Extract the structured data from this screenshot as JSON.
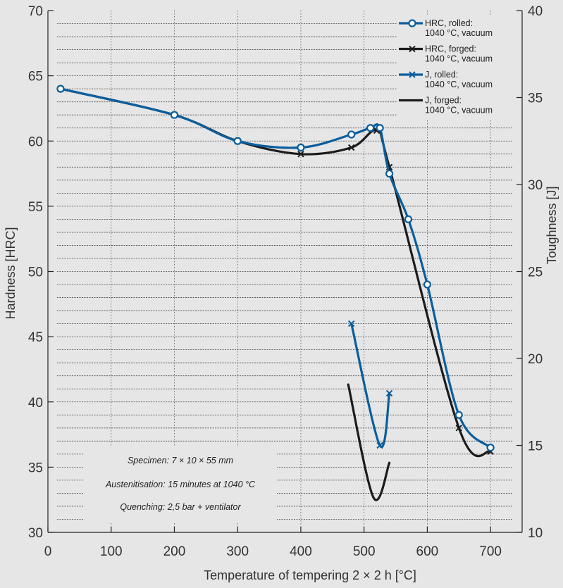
{
  "chart_data": {
    "type": "line",
    "xlabel": "Temperature of tempering 2 × 2 h [°C]",
    "ylabel": "Hardness [HRC]",
    "y2label": "Toughness [J]",
    "xlim": [
      0,
      750
    ],
    "ylim": [
      30,
      70
    ],
    "y2lim": [
      10,
      40
    ],
    "x_ticks": [
      "0",
      "100",
      "200",
      "300",
      "400",
      "500",
      "600",
      "700"
    ],
    "y_ticks": [
      "30",
      "35",
      "40",
      "45",
      "50",
      "55",
      "60",
      "65",
      "70"
    ],
    "y2_ticks": [
      "10",
      "15",
      "20",
      "25",
      "30",
      "35",
      "40"
    ],
    "series": [
      {
        "name": "HRC, rolled: 1040 °C, vacuum",
        "legend_lines": [
          "HRC, rolled:",
          "1040 °C, vacuum"
        ],
        "axis": "left",
        "color": "#0a5e9e",
        "marker": "circle",
        "x": [
          20,
          200,
          300,
          400,
          480,
          510,
          525,
          540,
          570,
          600,
          650,
          700
        ],
        "y": [
          64,
          62,
          60,
          59.5,
          60.5,
          61,
          61,
          57.5,
          54,
          49,
          39,
          36.5
        ]
      },
      {
        "name": "HRC, forged: 1040 °C, vacuum",
        "legend_lines": [
          "HRC, forged:",
          "1040 °C, vacuum"
        ],
        "axis": "left",
        "color": "#1c1c1c",
        "marker": "x",
        "x": [
          20,
          200,
          300,
          400,
          480,
          520,
          540,
          650,
          700
        ],
        "y": [
          64,
          62,
          60,
          59,
          59.5,
          60.8,
          58,
          38,
          36.2
        ]
      },
      {
        "name": "J, rolled: 1040 °C, vacuum",
        "legend_lines": [
          "J, rolled:",
          "1040 °C, vacuum"
        ],
        "axis": "right",
        "color": "#0a5e9e",
        "marker": "x",
        "x": [
          480,
          525,
          540
        ],
        "y": [
          22,
          15,
          18
        ]
      },
      {
        "name": "J, forged: 1040 °C, vacuum",
        "legend_lines": [
          "J, forged:",
          "1040 °C, vacuum"
        ],
        "axis": "right",
        "color": "#1c1c1c",
        "marker": "none",
        "x": [
          475,
          515,
          540
        ],
        "y": [
          18.5,
          12,
          14
        ]
      }
    ],
    "annotations": [
      "Specimen: 7 × 10 ×  55 mm",
      "Austenitisation: 15 minutes at 1040 °C",
      "Quenching: 2,5 bar + ventilator"
    ],
    "grid": true,
    "legend_position": "top-right"
  }
}
